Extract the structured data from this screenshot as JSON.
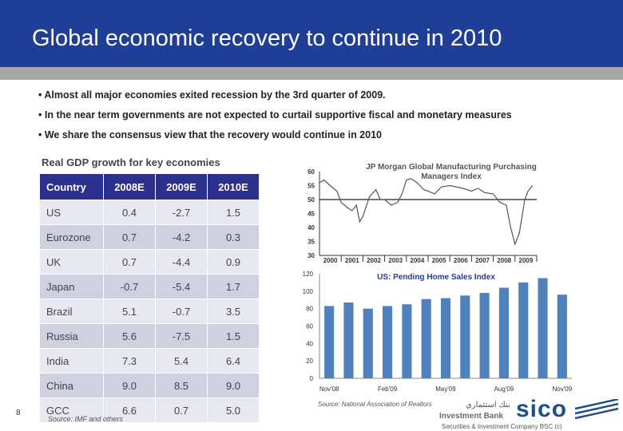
{
  "title": "Global economic recovery to continue in 2010",
  "bullets": [
    "Almost all major economies exited recession by the 3rd quarter of 2009.",
    "In the near term governments are not expected to curtail supportive fiscal and monetary measures",
    "We share the consensus view that the recovery would continue in 2010"
  ],
  "table": {
    "title": "Real GDP growth for key economies",
    "headers": [
      "Country",
      "2008E",
      "2009E",
      "2010E"
    ],
    "rows": [
      [
        "US",
        "0.4",
        "-2.7",
        "1.5"
      ],
      [
        "Eurozone",
        "0.7",
        "-4.2",
        "0.3"
      ],
      [
        "UK",
        "0.7",
        "-4.4",
        "0.9"
      ],
      [
        "Japan",
        "-0.7",
        "-5.4",
        "1.7"
      ],
      [
        "Brazil",
        "5.1",
        "-0.7",
        "3.5"
      ],
      [
        "Russia",
        "5.6",
        "-7.5",
        "1.5"
      ],
      [
        "India",
        "7.3",
        "5.4",
        "6.4"
      ],
      [
        "China",
        "9.0",
        "8.5",
        "9.0"
      ],
      [
        "GCC",
        "6.6",
        "0.7",
        "5.0"
      ]
    ],
    "source": "Source: IMF and others"
  },
  "page_number": "8",
  "chart_data": [
    {
      "type": "line",
      "title": "JP Morgan Global Manufacturing Purchasing Managers Index",
      "ylim": [
        30,
        60
      ],
      "yticks": [
        "60",
        "55",
        "50",
        "45",
        "40",
        "35",
        "30"
      ],
      "xticks": [
        "2000",
        "2001",
        "2002",
        "2003",
        "2004",
        "2005",
        "2006",
        "2007",
        "2008",
        "2009"
      ],
      "reference_line": 50,
      "color": "#555555",
      "x": [
        2000.0,
        2000.2,
        2000.5,
        2000.8,
        2001.0,
        2001.3,
        2001.5,
        2001.7,
        2001.85,
        2002.0,
        2002.3,
        2002.6,
        2002.8,
        2003.0,
        2003.3,
        2003.6,
        2003.8,
        2004.0,
        2004.2,
        2004.5,
        2004.8,
        2005.0,
        2005.3,
        2005.6,
        2006.0,
        2006.3,
        2006.6,
        2007.0,
        2007.3,
        2007.6,
        2008.0,
        2008.3,
        2008.6,
        2008.8,
        2009.0,
        2009.2,
        2009.45,
        2009.6,
        2009.8
      ],
      "y": [
        56,
        57,
        55,
        53,
        49,
        47,
        46,
        48,
        42,
        44,
        51,
        53.5,
        50,
        50,
        48,
        49,
        52,
        57,
        57.5,
        56,
        53.5,
        53,
        52,
        54.5,
        55,
        54.5,
        54,
        53,
        54,
        52.5,
        52,
        49,
        48,
        40,
        34,
        38,
        50,
        53,
        55
      ]
    },
    {
      "type": "bar",
      "title": "US: Pending Home Sales Index",
      "ylim": [
        0,
        120
      ],
      "yticks": [
        "0",
        "20",
        "40",
        "60",
        "80",
        "100",
        "120"
      ],
      "xticks": [
        "Nov'08",
        "Feb'09",
        "May'09",
        "Aug'09",
        "Nov'09"
      ],
      "color": "#4f81bd",
      "categories": [
        "Nov'08",
        "Dec'08",
        "Jan'09",
        "Feb'09",
        "Mar'09",
        "Apr'09",
        "May'09",
        "Jun'09",
        "Jul'09",
        "Aug'09",
        "Sep'09",
        "Oct'09",
        "Nov'09"
      ],
      "values": [
        83,
        87,
        80,
        83,
        85,
        91,
        92,
        95,
        98,
        104,
        110,
        115,
        96
      ],
      "source": "Source: National Association of Realtors"
    }
  ],
  "logo": {
    "arabic": "بنك استثماري",
    "bank": "Investment Bank",
    "brand": "sico",
    "company": "Securities & Investment Company BSC (c)"
  }
}
